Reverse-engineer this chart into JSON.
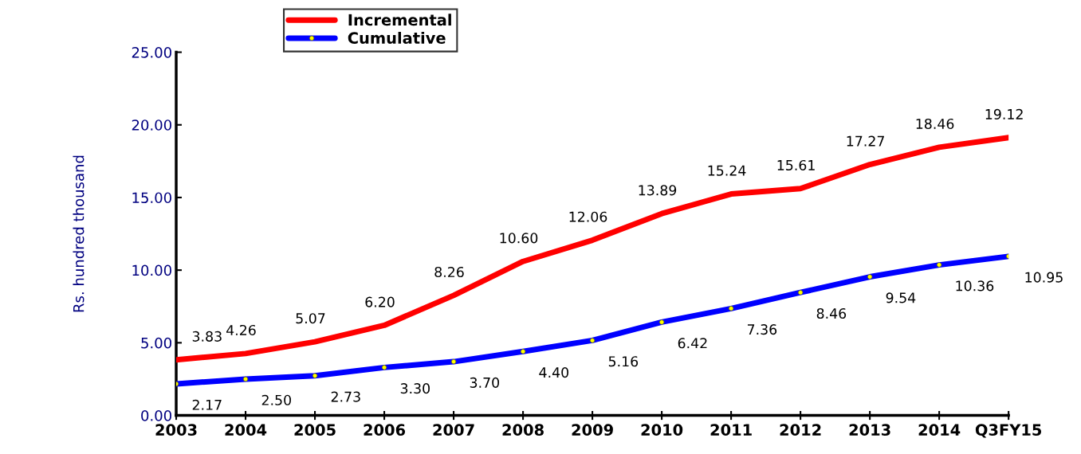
{
  "chart_data": {
    "type": "line",
    "ylabel": "Rs. hundred thousand",
    "categories": [
      "2003",
      "2004",
      "2005",
      "2006",
      "2007",
      "2008",
      "2009",
      "2010",
      "2011",
      "2012",
      "2013",
      "2014",
      "Q3FY15"
    ],
    "series": [
      {
        "name": "Incremental",
        "color": "#ff0000",
        "marker": "none",
        "values": [
          3.83,
          4.26,
          5.07,
          6.2,
          8.26,
          10.6,
          12.06,
          13.89,
          15.24,
          15.61,
          17.27,
          18.46,
          19.12
        ],
        "value_labels": [
          "3.83",
          "4.26",
          "5.07",
          "6.20",
          "8.26",
          "10.60",
          "12.06",
          "13.89",
          "15.24",
          "15.61",
          "17.27",
          "18.46",
          "19.12"
        ]
      },
      {
        "name": "Cumulative",
        "color": "#0000ff",
        "marker": "circle",
        "values": [
          2.17,
          2.5,
          2.73,
          3.3,
          3.7,
          4.4,
          5.16,
          6.42,
          7.36,
          8.46,
          9.54,
          10.36,
          10.95
        ],
        "value_labels": [
          "2.17",
          "2.50",
          "2.73",
          "3.30",
          "3.70",
          "4.40",
          "5.16",
          "6.42",
          "7.36",
          "8.46",
          "9.54",
          "10.36",
          "10.95"
        ]
      }
    ],
    "ylim": [
      0,
      25
    ],
    "yticks": [
      {
        "value": 0,
        "label": "0.00"
      },
      {
        "value": 5,
        "label": "5.00"
      },
      {
        "value": 10,
        "label": "10.00"
      },
      {
        "value": 15,
        "label": "15.00"
      },
      {
        "value": 20,
        "label": "20.00"
      },
      {
        "value": 25,
        "label": "25.00"
      }
    ],
    "grid": false,
    "legend": "top left",
    "line_style": "solid"
  }
}
